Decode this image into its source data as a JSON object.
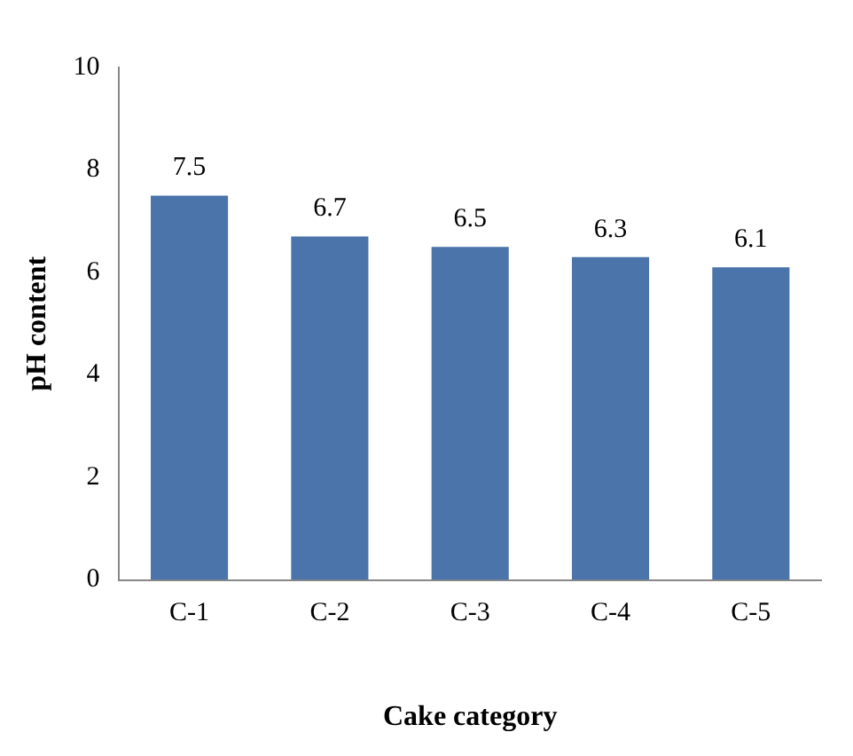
{
  "chart_data": {
    "type": "bar",
    "xlabel": "Cake category",
    "ylabel": "pH content",
    "categories": [
      "C-1",
      "C-2",
      "C-3",
      "C-4",
      "C-5"
    ],
    "values": [
      7.5,
      6.7,
      6.5,
      6.3,
      6.1
    ],
    "color": "#4a74aa",
    "ylim": [
      0,
      10
    ],
    "yticks": [
      0,
      2,
      4,
      6,
      8,
      10
    ],
    "grid": false,
    "legend": false,
    "data_labels": true
  }
}
